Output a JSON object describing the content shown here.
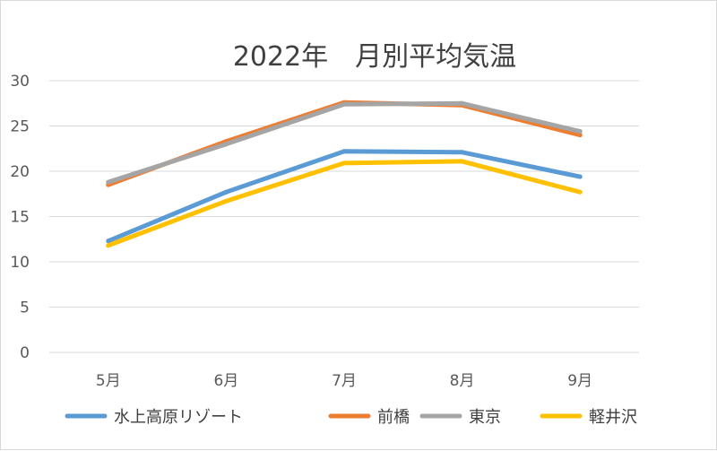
{
  "chart_data": {
    "type": "line",
    "title": "2022年　月別平均気温",
    "xlabel": "",
    "ylabel": "",
    "categories": [
      "5月",
      "6月",
      "7月",
      "8月",
      "9月"
    ],
    "ylim": [
      0,
      30
    ],
    "yticks": [
      "0",
      "5",
      "10",
      "15",
      "20",
      "25",
      "30"
    ],
    "grid": true,
    "legend_position": "bottom",
    "series": [
      {
        "name": "水上高原リゾート",
        "color": "#5b9bd5",
        "values": [
          12.3,
          17.7,
          22.2,
          22.1,
          19.4
        ]
      },
      {
        "name": "前橋",
        "color": "#ed7d31",
        "values": [
          18.5,
          23.3,
          27.6,
          27.3,
          24.0
        ]
      },
      {
        "name": "東京",
        "color": "#a5a5a5",
        "values": [
          18.8,
          23.0,
          27.4,
          27.5,
          24.4
        ]
      },
      {
        "name": "軽井沢",
        "color": "#ffc000",
        "values": [
          11.8,
          16.7,
          20.9,
          21.1,
          17.7
        ]
      }
    ]
  }
}
